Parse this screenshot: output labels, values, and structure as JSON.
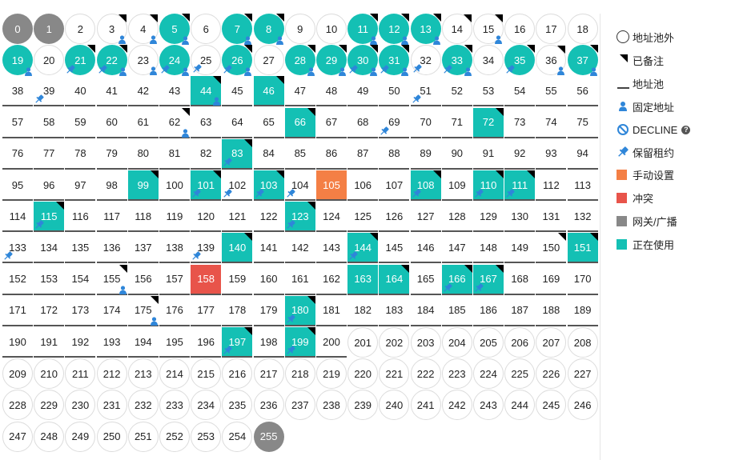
{
  "legend": {
    "items": [
      {
        "key": "outside",
        "label": "地址池外",
        "icon": "circle-outline-icon"
      },
      {
        "key": "note",
        "label": "已备注",
        "icon": "corner-flag-icon"
      },
      {
        "key": "pool",
        "label": "地址池",
        "icon": "underline-icon"
      },
      {
        "key": "fixed",
        "label": "固定地址",
        "icon": "person-icon"
      },
      {
        "key": "decline",
        "label": "DECLINE",
        "icon": "ban-icon",
        "help": "?"
      },
      {
        "key": "reserved",
        "label": "保留租约",
        "icon": "pin-icon"
      },
      {
        "key": "manual",
        "label": "手动设置",
        "icon": "square-icon",
        "color": "#f47f45"
      },
      {
        "key": "conflict",
        "label": "冲突",
        "icon": "square-icon",
        "color": "#e8544a"
      },
      {
        "key": "gateway",
        "label": "网关/广播",
        "icon": "square-icon",
        "color": "#888888"
      },
      {
        "key": "used",
        "label": "正在使用",
        "icon": "square-icon",
        "color": "#14c0b4"
      }
    ]
  },
  "colors": {
    "used": "#14c0b4",
    "gateway": "#888888",
    "manual": "#f47f45",
    "conflict": "#e8544a",
    "fixed": "#2f86d9",
    "pin": "#2f86d9"
  },
  "ip_grid": {
    "total": 256,
    "columns": 19,
    "pool_range": [
      38,
      200
    ],
    "gateway": [
      0,
      1,
      255
    ],
    "used": [
      5,
      7,
      8,
      11,
      12,
      13,
      19,
      21,
      22,
      24,
      26,
      28,
      29,
      30,
      31,
      33,
      35,
      37,
      44,
      46,
      66,
      72,
      83,
      99,
      101,
      103,
      108,
      110,
      111,
      115,
      123,
      140,
      144,
      151,
      163,
      164,
      166,
      167,
      180,
      197,
      199
    ],
    "manual": [
      105
    ],
    "conflict": [
      158
    ],
    "noted": [
      3,
      4,
      5,
      7,
      8,
      11,
      12,
      13,
      14,
      15,
      21,
      22,
      26,
      28,
      29,
      30,
      31,
      33,
      35,
      36,
      37,
      44,
      46,
      62,
      66,
      72,
      83,
      99,
      101,
      103,
      108,
      110,
      111,
      115,
      123,
      140,
      144,
      150,
      151,
      155,
      164,
      166,
      167,
      175,
      180,
      197,
      199
    ],
    "fixed": [
      3,
      4,
      5,
      7,
      8,
      11,
      12,
      13,
      15,
      19,
      22,
      23,
      24,
      26,
      28,
      29,
      30,
      31,
      33,
      36,
      37,
      44,
      62,
      155,
      175
    ],
    "reserved": [
      21,
      22,
      24,
      25,
      26,
      30,
      31,
      32,
      33,
      35,
      39,
      51,
      69,
      83,
      101,
      102,
      103,
      104,
      108,
      110,
      111,
      115,
      123,
      133,
      139,
      144,
      166,
      167,
      180,
      197,
      199
    ]
  }
}
